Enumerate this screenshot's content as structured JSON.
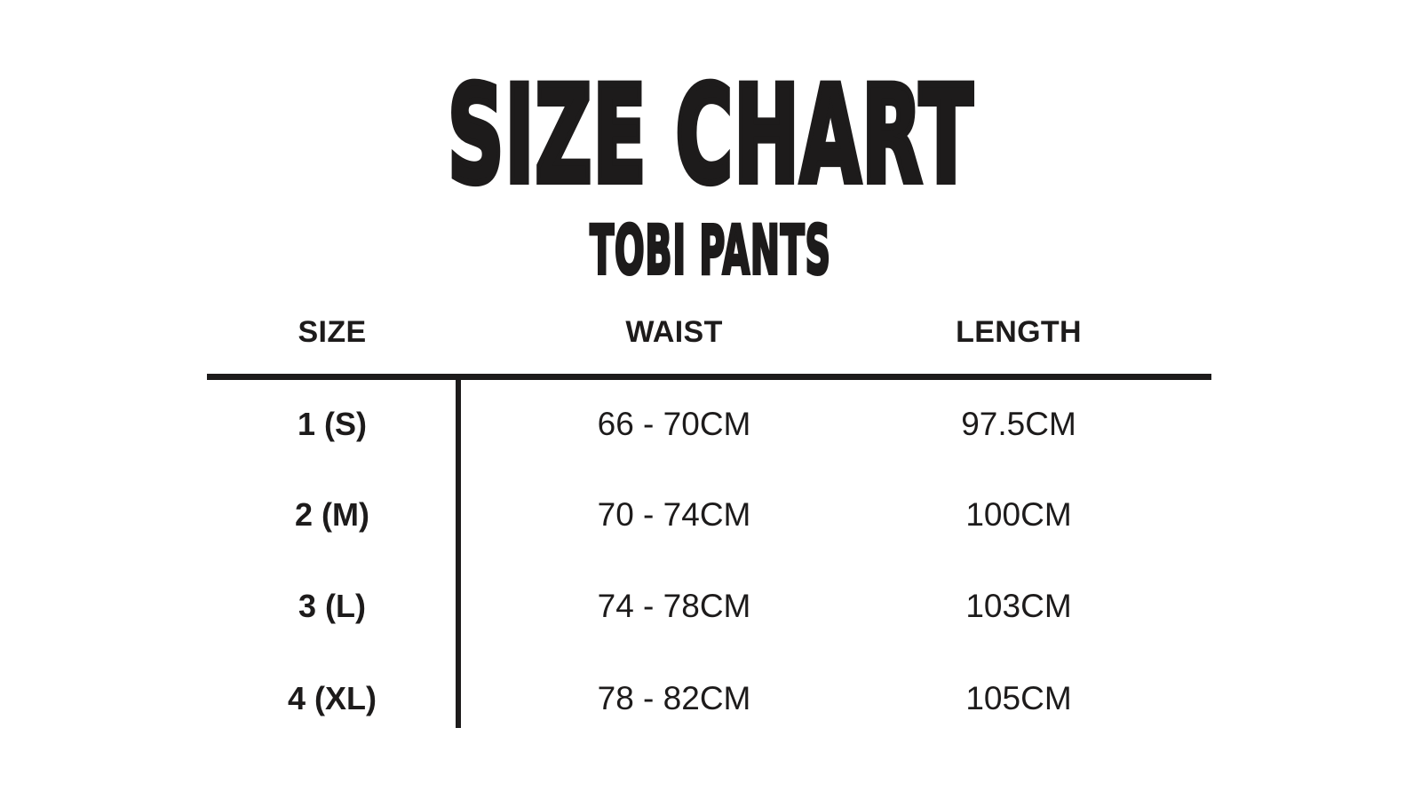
{
  "page": {
    "background_color": "#ffffff",
    "text_color": "#1d1b1b"
  },
  "title": "SIZE CHART",
  "subtitle": "TOBI PANTS",
  "table": {
    "headers": [
      "SIZE",
      "WAIST",
      "LENGTH"
    ],
    "rows": [
      {
        "size": "1 (S)",
        "waist": "66 - 70CM",
        "length": "97.5CM"
      },
      {
        "size": "2 (M)",
        "waist": "70 - 74CM",
        "length": "100CM"
      },
      {
        "size": "3 (L)",
        "waist": "74 - 78CM",
        "length": "103CM"
      },
      {
        "size": "4 (XL)",
        "waist": "78 - 82CM",
        "length": "105CM"
      }
    ]
  },
  "chart_data": {
    "type": "table",
    "title": "SIZE CHART",
    "subtitle": "TOBI PANTS",
    "columns": [
      "SIZE",
      "WAIST",
      "LENGTH"
    ],
    "rows": [
      [
        "1 (S)",
        "66 - 70CM",
        "97.5CM"
      ],
      [
        "2 (M)",
        "70 - 74CM",
        "100CM"
      ],
      [
        "3 (L)",
        "74 - 78CM",
        "103CM"
      ],
      [
        "4 (XL)",
        "78 - 82CM",
        "105CM"
      ]
    ],
    "units": "cm",
    "waist_ranges_cm": [
      [
        66,
        70
      ],
      [
        70,
        74
      ],
      [
        74,
        78
      ],
      [
        78,
        82
      ]
    ],
    "lengths_cm": [
      97.5,
      100,
      103,
      105
    ]
  }
}
